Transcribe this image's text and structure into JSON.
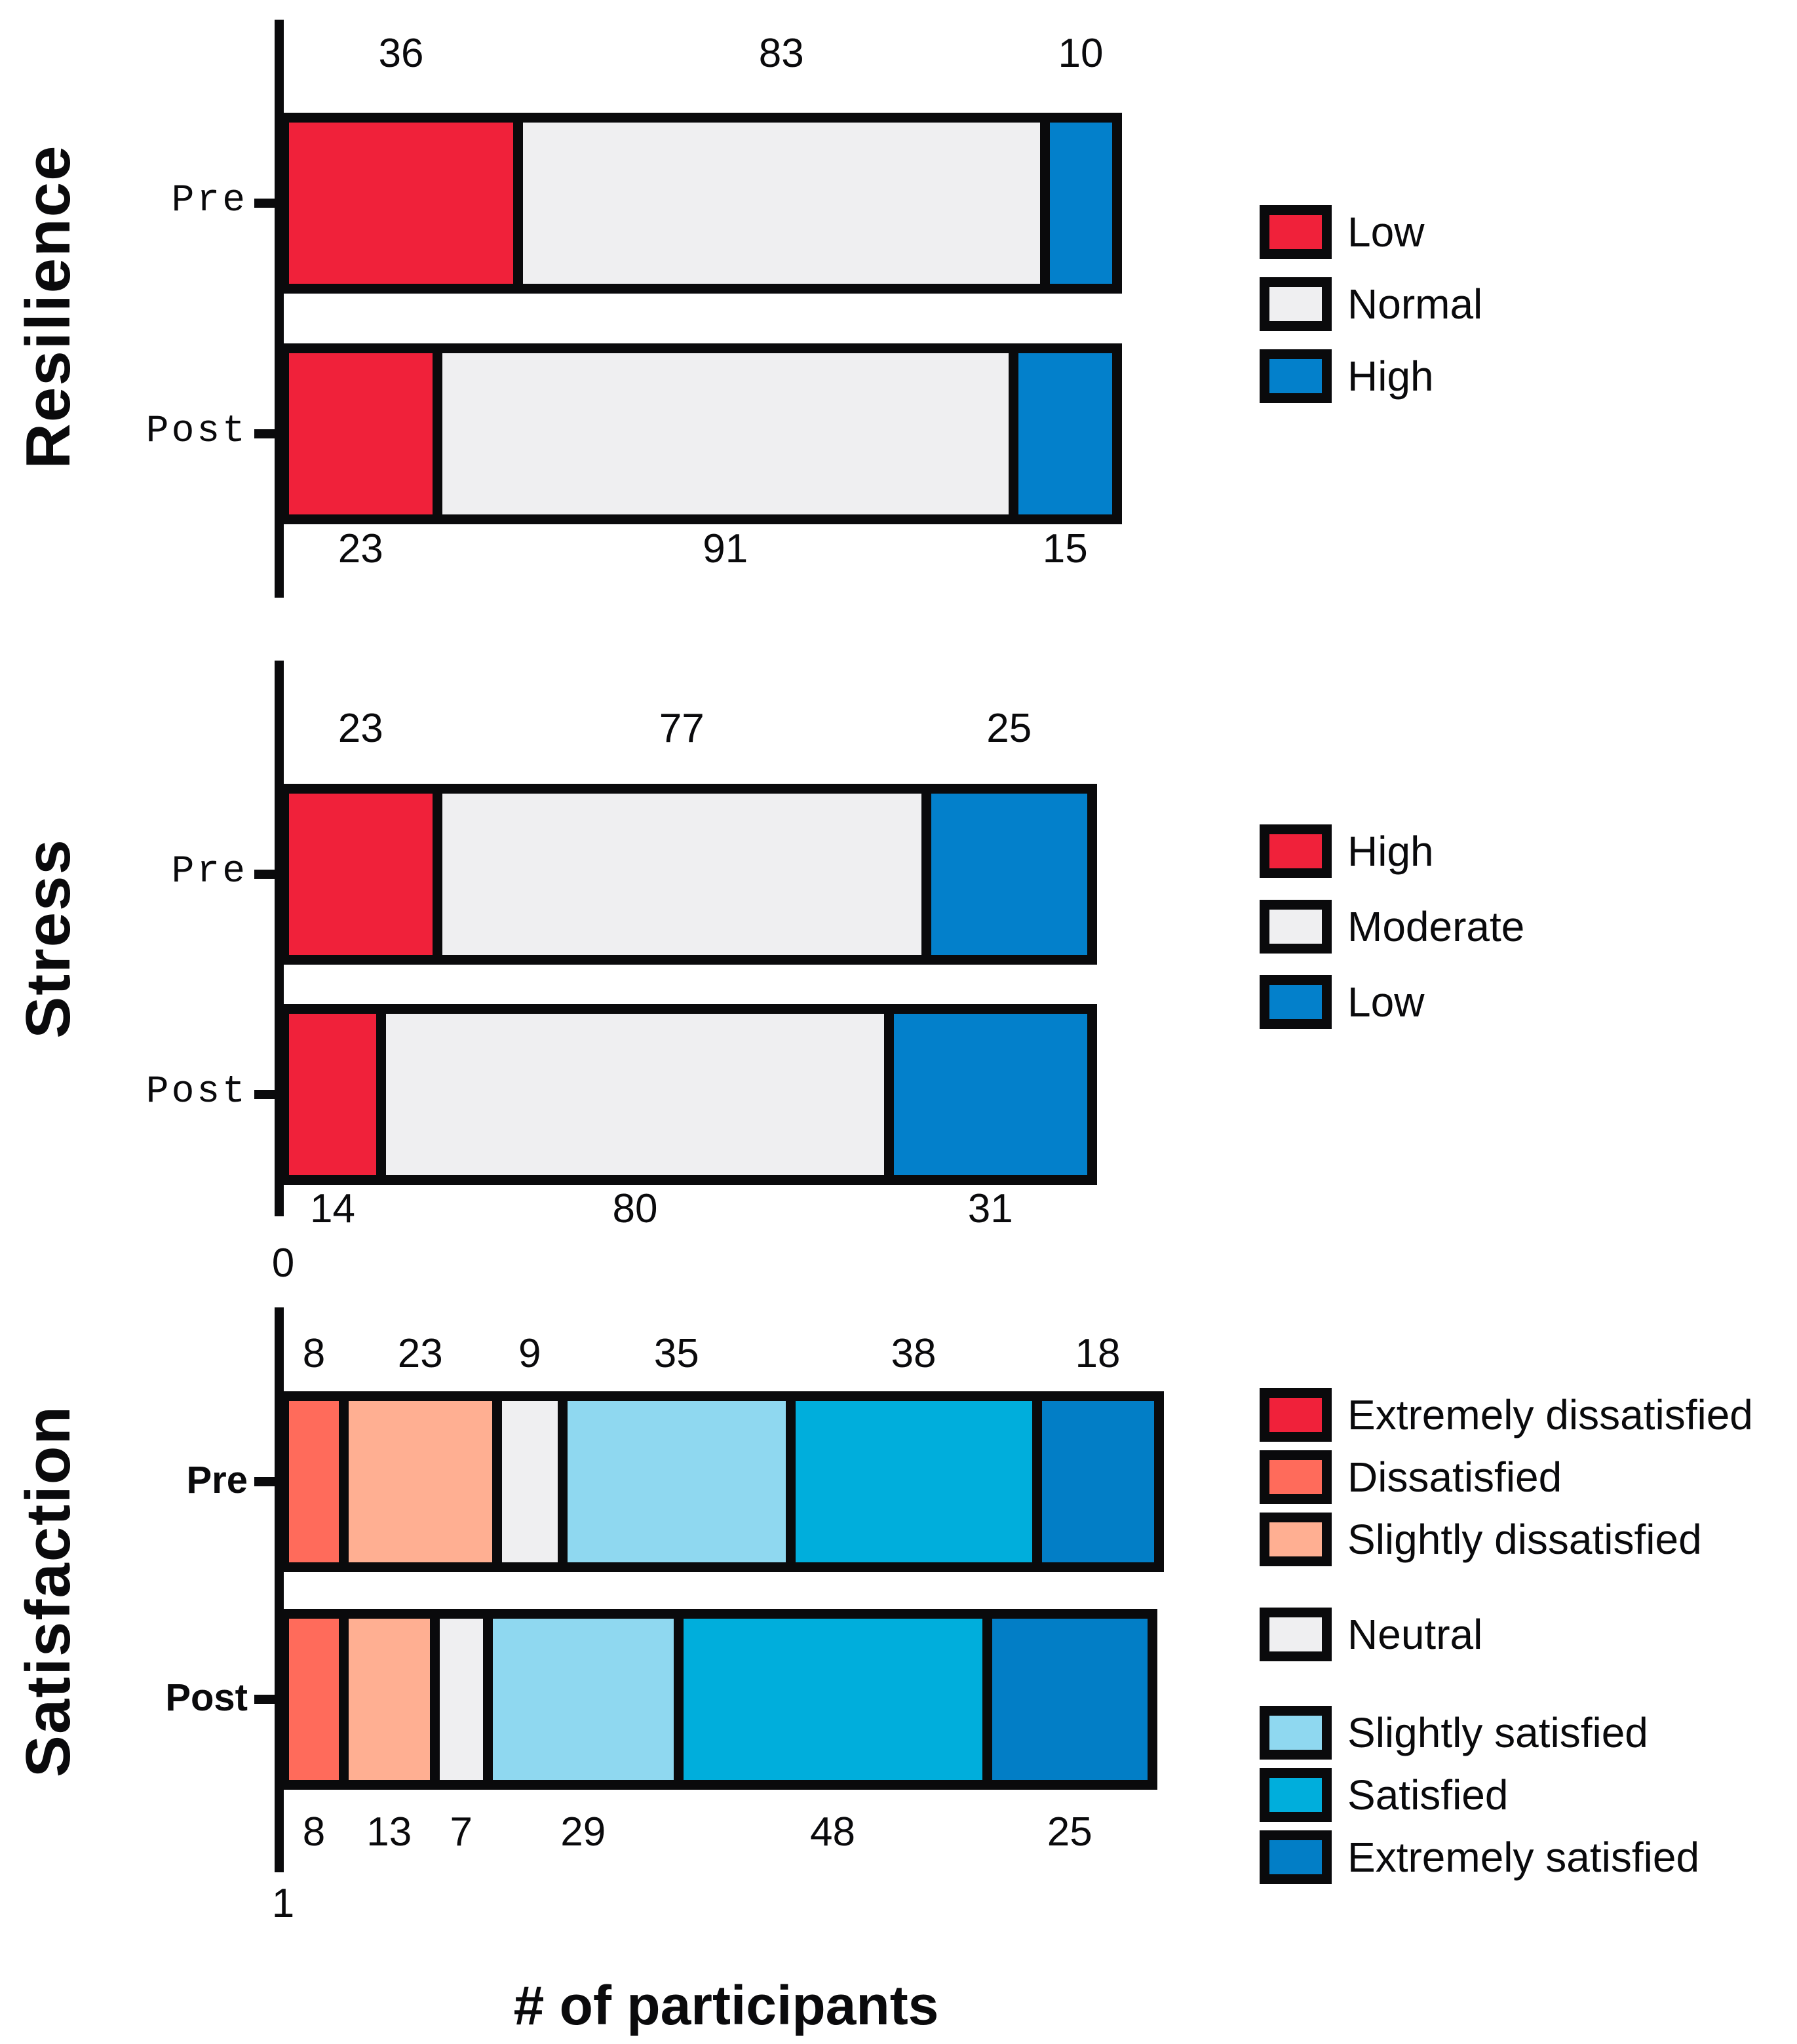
{
  "x_axis_title": "# of participants",
  "colors": {
    "crimson": "#F0213A",
    "tomato": "#FF6B5B",
    "salmon": "#FFAF92",
    "gray": "#EFEFF1",
    "lightblue": "#8FD8F0",
    "cyan": "#00AEDC",
    "blue": "#0380CB",
    "darkblue": "#027EC6",
    "outline": "#0A0A0C"
  },
  "panels": [
    {
      "title": "Resilience",
      "tick_font": "mono",
      "legend": [
        {
          "label": "Low",
          "color": "crimson"
        },
        {
          "label": "Normal",
          "color": "gray"
        },
        {
          "label": "High",
          "color": "blue"
        }
      ],
      "bars": [
        {
          "tick": "Pre",
          "values_position": "above",
          "segments": [
            {
              "value": 36,
              "color": "crimson"
            },
            {
              "value": 83,
              "color": "gray"
            },
            {
              "value": 10,
              "color": "blue"
            }
          ]
        },
        {
          "tick": "Post",
          "values_position": "below",
          "segments": [
            {
              "value": 23,
              "color": "crimson"
            },
            {
              "value": 91,
              "color": "gray"
            },
            {
              "value": 15,
              "color": "blue"
            }
          ]
        }
      ]
    },
    {
      "title": "Stress",
      "tick_font": "mono",
      "origin_label": "0",
      "legend": [
        {
          "label": "High",
          "color": "crimson"
        },
        {
          "label": "Moderate",
          "color": "gray"
        },
        {
          "label": "Low",
          "color": "blue"
        }
      ],
      "bars": [
        {
          "tick": "Pre",
          "values_position": "above",
          "segments": [
            {
              "value": 23,
              "color": "crimson"
            },
            {
              "value": 77,
              "color": "gray"
            },
            {
              "value": 25,
              "color": "blue"
            }
          ]
        },
        {
          "tick": "Post",
          "values_position": "below",
          "segments": [
            {
              "value": 14,
              "color": "crimson"
            },
            {
              "value": 80,
              "color": "gray"
            },
            {
              "value": 31,
              "color": "blue"
            }
          ]
        }
      ]
    },
    {
      "title": "Satisfaction",
      "tick_font": "sans-bold",
      "origin_label": "1",
      "legend": [
        {
          "label": "Extremely dissatisfied",
          "color": "crimson"
        },
        {
          "label": "Dissatisfied",
          "color": "tomato"
        },
        {
          "label": "Slightly dissatisfied",
          "color": "salmon"
        },
        {
          "label": "Neutral",
          "color": "gray"
        },
        {
          "label": "Slightly satisfied",
          "color": "lightblue"
        },
        {
          "label": "Satisfied",
          "color": "cyan"
        },
        {
          "label": "Extremely satisfied",
          "color": "darkblue"
        }
      ],
      "bars": [
        {
          "tick": "Pre",
          "values_position": "above",
          "segments": [
            {
              "value": 8,
              "color": "tomato"
            },
            {
              "value": 23,
              "color": "salmon"
            },
            {
              "value": 9,
              "color": "gray"
            },
            {
              "value": 35,
              "color": "lightblue"
            },
            {
              "value": 38,
              "color": "cyan"
            },
            {
              "value": 18,
              "color": "darkblue"
            }
          ]
        },
        {
          "tick": "Post",
          "values_position": "below",
          "segments": [
            {
              "value": 8,
              "color": "tomato"
            },
            {
              "value": 13,
              "color": "salmon"
            },
            {
              "value": 7,
              "color": "gray"
            },
            {
              "value": 29,
              "color": "lightblue"
            },
            {
              "value": 48,
              "color": "cyan"
            },
            {
              "value": 25,
              "color": "darkblue"
            }
          ]
        }
      ]
    }
  ],
  "chart_data": [
    {
      "type": "bar",
      "orientation": "horizontal-stacked",
      "title": "Resilience",
      "categories": [
        "Pre",
        "Post"
      ],
      "series": [
        {
          "name": "Low",
          "values": [
            36,
            23
          ]
        },
        {
          "name": "Normal",
          "values": [
            83,
            91
          ]
        },
        {
          "name": "High",
          "values": [
            10,
            15
          ]
        }
      ],
      "xlabel": "# of participants",
      "legend_position": "right",
      "grid": false,
      "value_labels": "outside bars (above Pre, below Post)"
    },
    {
      "type": "bar",
      "orientation": "horizontal-stacked",
      "title": "Stress",
      "categories": [
        "Pre",
        "Post"
      ],
      "series": [
        {
          "name": "High",
          "values": [
            23,
            14
          ]
        },
        {
          "name": "Moderate",
          "values": [
            77,
            80
          ]
        },
        {
          "name": "Low",
          "values": [
            25,
            31
          ]
        }
      ],
      "xlabel": "# of participants",
      "legend_position": "right",
      "grid": false,
      "x_origin_tick_label": "0",
      "value_labels": "outside bars (above Pre, below Post)"
    },
    {
      "type": "bar",
      "orientation": "horizontal-stacked",
      "title": "Satisfaction",
      "categories": [
        "Pre",
        "Post"
      ],
      "series": [
        {
          "name": "Dissatisfied",
          "values": [
            8,
            8
          ]
        },
        {
          "name": "Slightly dissatisfied",
          "values": [
            23,
            13
          ]
        },
        {
          "name": "Neutral",
          "values": [
            9,
            7
          ]
        },
        {
          "name": "Slightly satisfied",
          "values": [
            35,
            29
          ]
        },
        {
          "name": "Satisfied",
          "values": [
            38,
            48
          ]
        },
        {
          "name": "Extremely satisfied",
          "values": [
            18,
            25
          ]
        }
      ],
      "legend_entries": [
        "Extremely dissatisfied",
        "Dissatisfied",
        "Slightly dissatisfied",
        "Neutral",
        "Slightly satisfied",
        "Satisfied",
        "Extremely satisfied"
      ],
      "xlabel": "# of participants",
      "legend_position": "right",
      "grid": false,
      "x_origin_tick_label": "1",
      "value_labels": "outside bars (above Pre, below Post)"
    }
  ]
}
